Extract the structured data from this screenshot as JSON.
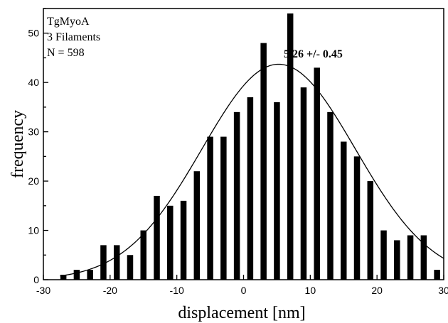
{
  "chart_data": {
    "type": "bar",
    "xlabel": "displacement [nm]",
    "ylabel": "frequency",
    "xlim": [
      -30,
      30
    ],
    "ylim": [
      0,
      55
    ],
    "x_ticks": [
      -30,
      -20,
      -10,
      0,
      10,
      20,
      30
    ],
    "y_ticks": [
      0,
      10,
      20,
      30,
      40,
      50
    ],
    "grid": false,
    "annotations": {
      "line1": "TgMyoA",
      "line2": "3 Filaments",
      "line3": "N = 598",
      "fit": "5.26 +/- 0.45"
    },
    "x": [
      -27,
      -25,
      -23,
      -21,
      -19,
      -17,
      -15,
      -13,
      -11,
      -9,
      -7,
      -5,
      -3,
      -1,
      1,
      3,
      5,
      7,
      9,
      11,
      13,
      15,
      17,
      19,
      21,
      23,
      25,
      27,
      29
    ],
    "values": [
      1,
      2,
      2,
      7,
      7,
      5,
      10,
      17,
      15,
      16,
      22,
      29,
      29,
      34,
      37,
      48,
      36,
      54,
      39,
      43,
      34,
      28,
      25,
      20,
      10,
      8,
      9,
      9,
      2
    ],
    "fit_curve": {
      "type": "gaussian",
      "center": 5.26,
      "amplitude": 43.7,
      "sigma": 11.5,
      "baseline": 0
    }
  }
}
